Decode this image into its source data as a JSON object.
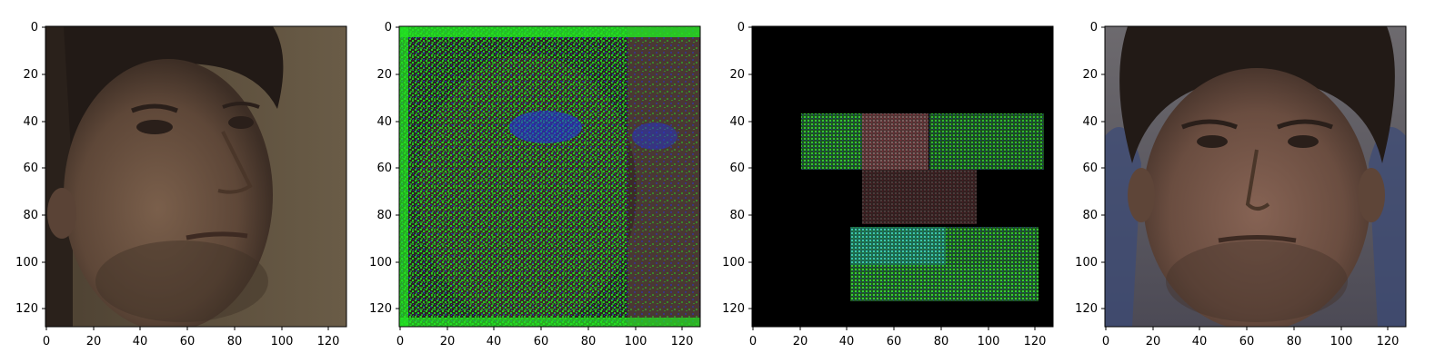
{
  "figure": {
    "panels": [
      {
        "name": "panel-source-face",
        "content": "photo-face-three-quarter",
        "ticks": {
          "x": [
            "0",
            "20",
            "40",
            "60",
            "80",
            "100",
            "120"
          ],
          "y": [
            "0",
            "20",
            "40",
            "60",
            "80",
            "100",
            "120"
          ]
        }
      },
      {
        "name": "panel-noise-overlay",
        "content": "green-blue-noise-over-face",
        "ticks": {
          "x": [
            "0",
            "20",
            "40",
            "60",
            "80",
            "100",
            "120"
          ],
          "y": [
            "0",
            "20",
            "40",
            "60",
            "80",
            "100",
            "120"
          ]
        }
      },
      {
        "name": "panel-block-patches",
        "content": "green-blocks-on-black",
        "ticks": {
          "x": [
            "0",
            "20",
            "40",
            "60",
            "80",
            "100",
            "120"
          ],
          "y": [
            "0",
            "20",
            "40",
            "60",
            "80",
            "100",
            "120"
          ]
        }
      },
      {
        "name": "panel-target-face",
        "content": "photo-face-frontal",
        "ticks": {
          "x": [
            "0",
            "20",
            "40",
            "60",
            "80",
            "100",
            "120"
          ],
          "y": [
            "0",
            "20",
            "40",
            "60",
            "80",
            "100",
            "120"
          ]
        }
      }
    ],
    "axis_range": [
      0,
      127
    ],
    "colors": {
      "skin": "#6b5443",
      "hair": "#221a16",
      "background_wall": "#5a4e3c",
      "noise_green": "#22e622",
      "noise_blue": "#2233dd",
      "block_black": "#000000"
    }
  }
}
